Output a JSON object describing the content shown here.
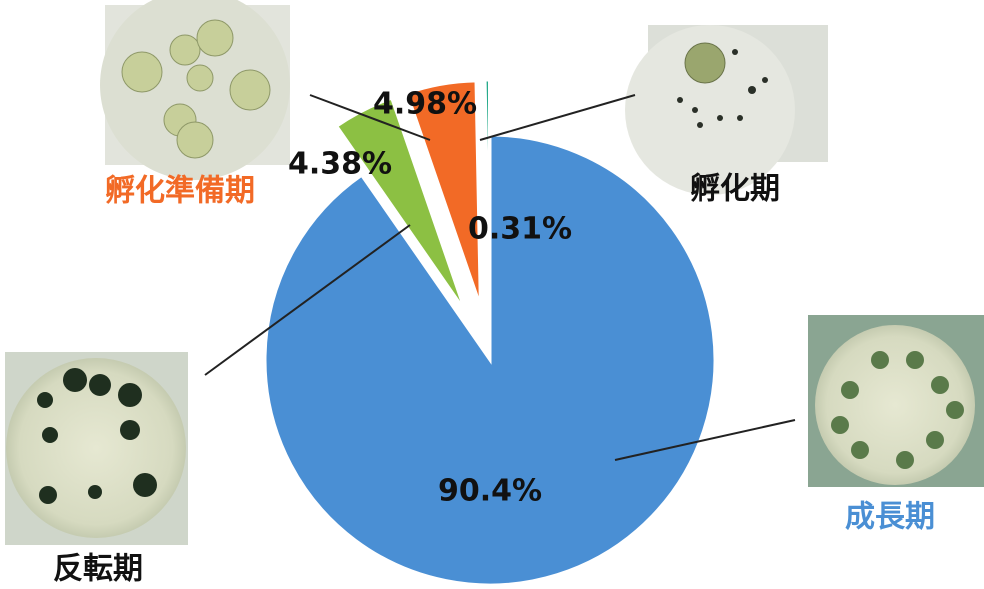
{
  "chart_data": {
    "type": "pie",
    "categories": [
      "成長期",
      "反転期",
      "孵化準備期",
      "孵化期"
    ],
    "values": [
      90.4,
      4.38,
      4.98,
      0.31
    ],
    "value_labels": [
      "90.4%",
      "4.38%",
      "4.98%",
      "0.31%"
    ],
    "colors": [
      "#4a8fd4",
      "#8cc043",
      "#f26a26",
      "#1fa887"
    ],
    "label_colors": [
      "#4a8fd4",
      "#111111",
      "#f26a26",
      "#111111"
    ]
  }
}
